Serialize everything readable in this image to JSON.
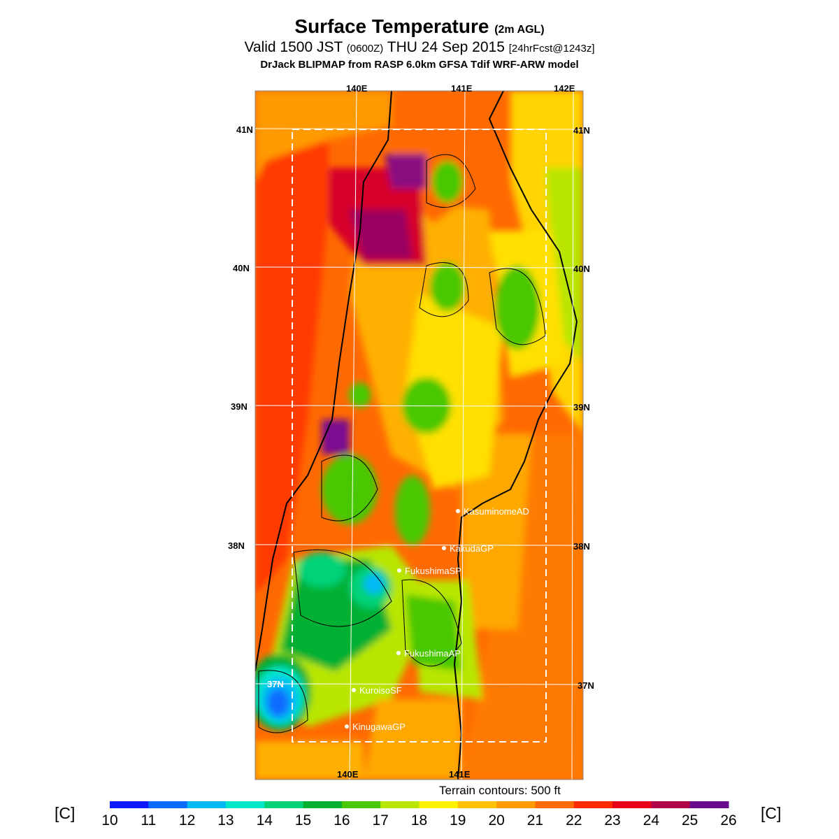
{
  "header": {
    "title": "Surface Temperature",
    "title_sub": "(2m AGL)",
    "valid_prefix": "Valid 1500 JST",
    "valid_z": "(0600Z)",
    "valid_date": "THU 24 Sep 2015",
    "forecast": "[24hrFcst@1243z]",
    "model_line": "DrJack BLIPMAP from RASP 6.0km GFSA Tdif WRF-ARW model"
  },
  "map": {
    "lon_labels_top": [
      "140E",
      "141E",
      "142E"
    ],
    "lon_labels_bottom": [
      "140E",
      "141E"
    ],
    "lat_labels": [
      "41N",
      "40N",
      "39N",
      "38N",
      "37N"
    ],
    "sites": [
      {
        "name": "KasuminomeAD"
      },
      {
        "name": "KakudaGP"
      },
      {
        "name": "FukushimaSP"
      },
      {
        "name": "FukushimaAP"
      },
      {
        "name": "KuroisoSF"
      },
      {
        "name": "KinugawaGP"
      }
    ]
  },
  "terrain_note": "Terrain contours: 500 ft",
  "colorbar": {
    "unit_left": "[C]",
    "unit_right": "[C]",
    "ticks": [
      "10",
      "11",
      "12",
      "13",
      "14",
      "15",
      "16",
      "17",
      "18",
      "19",
      "20",
      "21",
      "22",
      "23",
      "24",
      "25",
      "26"
    ],
    "colors": [
      "#0f19ff",
      "#0a6cff",
      "#00baf5",
      "#00e6c8",
      "#00d278",
      "#00b030",
      "#48c800",
      "#b8e600",
      "#fff200",
      "#ffc200",
      "#ff9a00",
      "#ff6a00",
      "#ff2a00",
      "#e60018",
      "#b0004a",
      "#6a0a8c"
    ]
  }
}
